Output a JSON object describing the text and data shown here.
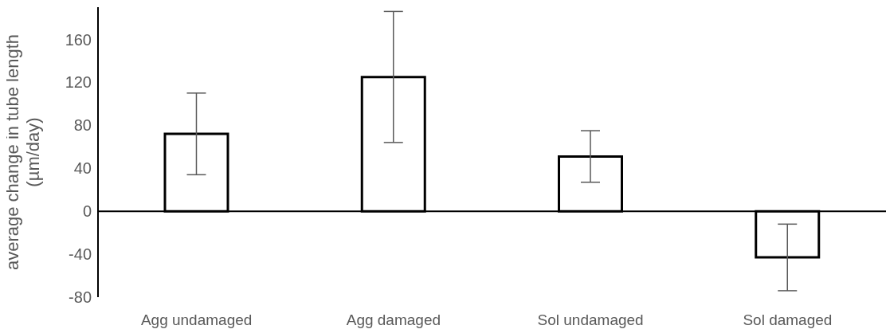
{
  "chart_data": {
    "type": "bar",
    "ylabel": "average change in tube length (µm/day)",
    "categories": [
      "Agg undamaged",
      "Agg damaged",
      "Sol undamaged",
      "Sol damaged"
    ],
    "values": [
      72,
      125,
      51,
      -43
    ],
    "errors": [
      38,
      61,
      24,
      31
    ],
    "color": "#ffffff",
    "ylim": [
      -80,
      190
    ],
    "yticks": [
      -80,
      -40,
      0,
      40,
      80,
      120,
      160
    ]
  }
}
